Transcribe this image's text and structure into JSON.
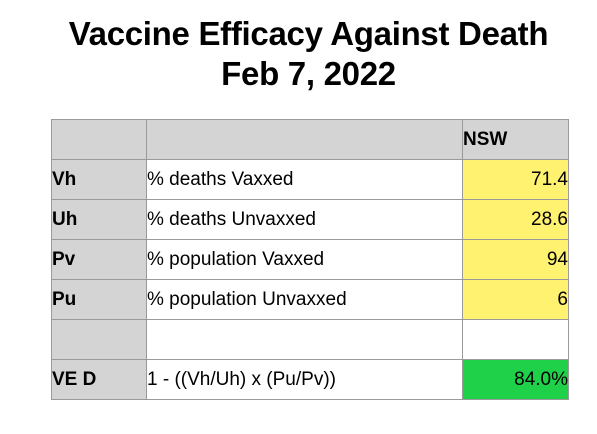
{
  "title": {
    "line1": "Vaccine Efficacy Against Death",
    "line2": "Feb 7, 2022"
  },
  "table": {
    "header": {
      "key": "",
      "description": "",
      "region": "NSW"
    },
    "rows": [
      {
        "key": "Vh",
        "description": "% deaths Vaxxed",
        "value": "71.4"
      },
      {
        "key": "Uh",
        "description": "% deaths Unvaxxed",
        "value": "28.6"
      },
      {
        "key": "Pv",
        "description": "% population Vaxxed",
        "value": "94"
      },
      {
        "key": "Pu",
        "description": "% population Unvaxxed",
        "value": "6"
      },
      {
        "key": "",
        "description": "",
        "value": ""
      },
      {
        "key": "VE D",
        "description": "1 - ((Vh/Uh) x (Pu/Pv))",
        "value": "84.0%"
      }
    ]
  },
  "colors": {
    "header_gray": "#d4d4d4",
    "input_yellow": "#fff270",
    "result_green": "#1fd049",
    "border": "#9a9a9a"
  }
}
